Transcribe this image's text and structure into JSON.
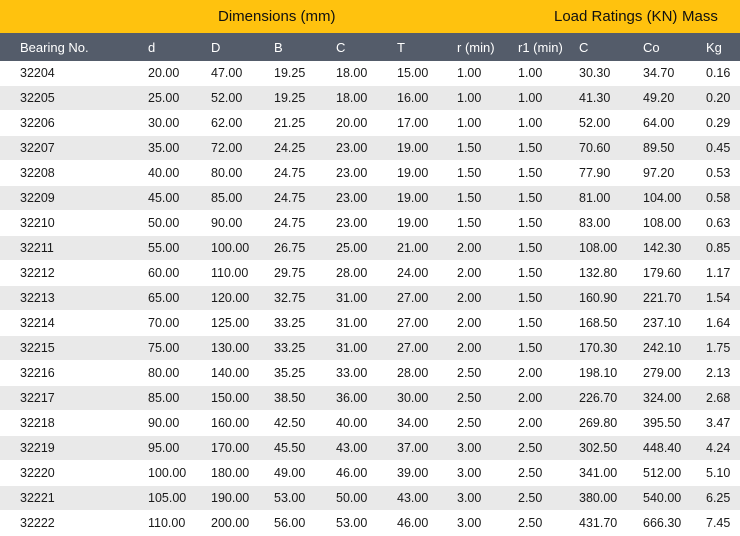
{
  "group_headers": {
    "dimensions": "Dimensions (mm)",
    "load_ratings": "Load Ratings (KN)",
    "mass": "Mass"
  },
  "columns": [
    "Bearing No.",
    "d",
    "D",
    "B",
    "C",
    "T",
    "r (min)",
    "r1 (min)",
    "C",
    "Co",
    "Kg"
  ],
  "rows": [
    [
      "32204",
      "20.00",
      "47.00",
      "19.25",
      "18.00",
      "15.00",
      "1.00",
      "1.00",
      "30.30",
      "34.70",
      "0.16"
    ],
    [
      "32205",
      "25.00",
      "52.00",
      "19.25",
      "18.00",
      "16.00",
      "1.00",
      "1.00",
      "41.30",
      "49.20",
      "0.20"
    ],
    [
      "32206",
      "30.00",
      "62.00",
      "21.25",
      "20.00",
      "17.00",
      "1.00",
      "1.00",
      "52.00",
      "64.00",
      "0.29"
    ],
    [
      "32207",
      "35.00",
      "72.00",
      "24.25",
      "23.00",
      "19.00",
      "1.50",
      "1.50",
      "70.60",
      "89.50",
      "0.45"
    ],
    [
      "32208",
      "40.00",
      "80.00",
      "24.75",
      "23.00",
      "19.00",
      "1.50",
      "1.50",
      "77.90",
      "97.20",
      "0.53"
    ],
    [
      "32209",
      "45.00",
      "85.00",
      "24.75",
      "23.00",
      "19.00",
      "1.50",
      "1.50",
      "81.00",
      "104.00",
      "0.58"
    ],
    [
      "32210",
      "50.00",
      "90.00",
      "24.75",
      "23.00",
      "19.00",
      "1.50",
      "1.50",
      "83.00",
      "108.00",
      "0.63"
    ],
    [
      "32211",
      "55.00",
      "100.00",
      "26.75",
      "25.00",
      "21.00",
      "2.00",
      "1.50",
      "108.00",
      "142.30",
      "0.85"
    ],
    [
      "32212",
      "60.00",
      "110.00",
      "29.75",
      "28.00",
      "24.00",
      "2.00",
      "1.50",
      "132.80",
      "179.60",
      "1.17"
    ],
    [
      "32213",
      "65.00",
      "120.00",
      "32.75",
      "31.00",
      "27.00",
      "2.00",
      "1.50",
      "160.90",
      "221.70",
      "1.54"
    ],
    [
      "32214",
      "70.00",
      "125.00",
      "33.25",
      "31.00",
      "27.00",
      "2.00",
      "1.50",
      "168.50",
      "237.10",
      "1.64"
    ],
    [
      "32215",
      "75.00",
      "130.00",
      "33.25",
      "31.00",
      "27.00",
      "2.00",
      "1.50",
      "170.30",
      "242.10",
      "1.75"
    ],
    [
      "32216",
      "80.00",
      "140.00",
      "35.25",
      "33.00",
      "28.00",
      "2.50",
      "2.00",
      "198.10",
      "279.00",
      "2.13"
    ],
    [
      "32217",
      "85.00",
      "150.00",
      "38.50",
      "36.00",
      "30.00",
      "2.50",
      "2.00",
      "226.70",
      "324.00",
      "2.68"
    ],
    [
      "32218",
      "90.00",
      "160.00",
      "42.50",
      "40.00",
      "34.00",
      "2.50",
      "2.00",
      "269.80",
      "395.50",
      "3.47"
    ],
    [
      "32219",
      "95.00",
      "170.00",
      "45.50",
      "43.00",
      "37.00",
      "3.00",
      "2.50",
      "302.50",
      "448.40",
      "4.24"
    ],
    [
      "32220",
      "100.00",
      "180.00",
      "49.00",
      "46.00",
      "39.00",
      "3.00",
      "2.50",
      "341.00",
      "512.00",
      "5.10"
    ],
    [
      "32221",
      "105.00",
      "190.00",
      "53.00",
      "50.00",
      "43.00",
      "3.00",
      "2.50",
      "380.00",
      "540.00",
      "6.25"
    ],
    [
      "32222",
      "110.00",
      "200.00",
      "56.00",
      "53.00",
      "46.00",
      "3.00",
      "2.50",
      "431.70",
      "666.30",
      "7.45"
    ]
  ],
  "colors": {
    "band": "#ffc20e",
    "header": "#545c6a",
    "stripe": "#e9e9e9"
  }
}
